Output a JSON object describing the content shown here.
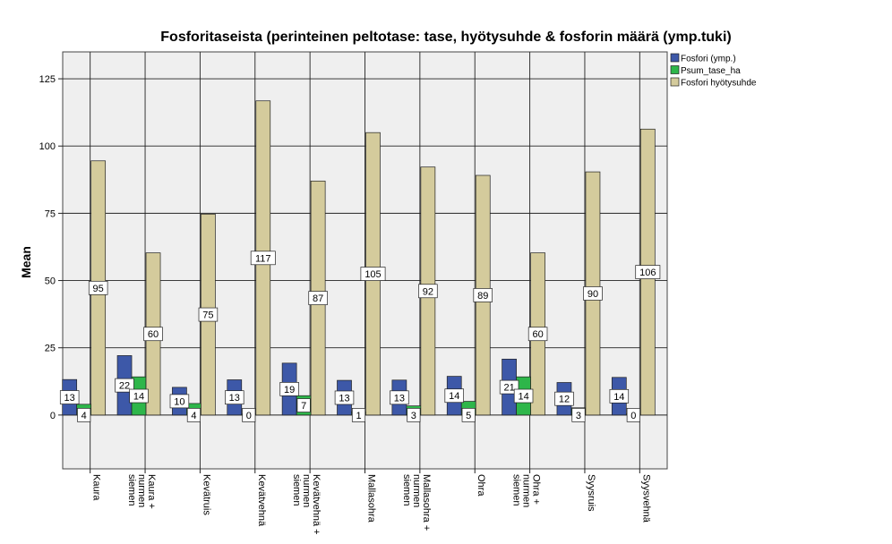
{
  "chart_data": {
    "type": "bar",
    "title": "Fosforitaseista (perinteinen peltotase: tase, hyötysuhde & fosforin määrä (ymp.tuki)",
    "ylabel": "Mean",
    "xlabel": "",
    "ylim": [
      -20,
      135
    ],
    "yticks": [
      0,
      25,
      50,
      75,
      100,
      125
    ],
    "grid": true,
    "legend_position": "top-right",
    "categories": [
      [
        "Kaura"
      ],
      [
        "Kaura +",
        "nurmen",
        "siemen"
      ],
      [
        "Kevätruis"
      ],
      [
        "Kevätvehnä"
      ],
      [
        "Kevätvehnä +",
        "nurmen",
        "siemen"
      ],
      [
        "Mallasohra"
      ],
      [
        "Mallasohra +",
        "nurmen",
        "siemen"
      ],
      [
        "Ohra"
      ],
      [
        "Ohra +",
        "nurmen",
        "siemen"
      ],
      [
        "Syysruis"
      ],
      [
        "Syysvehnä"
      ]
    ],
    "series": [
      {
        "name": "Fosfori (ymp.)",
        "color": "#3d58a8",
        "values": [
          13.2,
          22.1,
          10.3,
          13.1,
          19.3,
          12.9,
          13.0,
          14.4,
          20.8,
          12.1,
          14.0
        ],
        "labels": [
          "13",
          "22",
          "10",
          "13",
          "19",
          "13",
          "13",
          "14",
          "21",
          "12",
          "14"
        ]
      },
      {
        "name": "Psum_tase_ha",
        "color": "#2eb64a",
        "values": [
          4.0,
          14.2,
          4.3,
          0.4,
          7.2,
          1.2,
          3.4,
          5.1,
          14.2,
          2.7,
          0.4
        ],
        "labels": [
          "4",
          "14",
          "4",
          "0",
          "7",
          "1",
          "3",
          "5",
          "14",
          "3",
          "0"
        ]
      },
      {
        "name": "Fosfori hyötysuhde",
        "color": "#d4cb9c",
        "values": [
          94.5,
          60.3,
          74.7,
          116.8,
          87.0,
          105.0,
          92.2,
          89.1,
          60.3,
          90.4,
          106.3
        ],
        "labels": [
          "95",
          "60",
          "75",
          "117",
          "87",
          "105",
          "92",
          "89",
          "60",
          "90",
          "106"
        ]
      }
    ]
  }
}
